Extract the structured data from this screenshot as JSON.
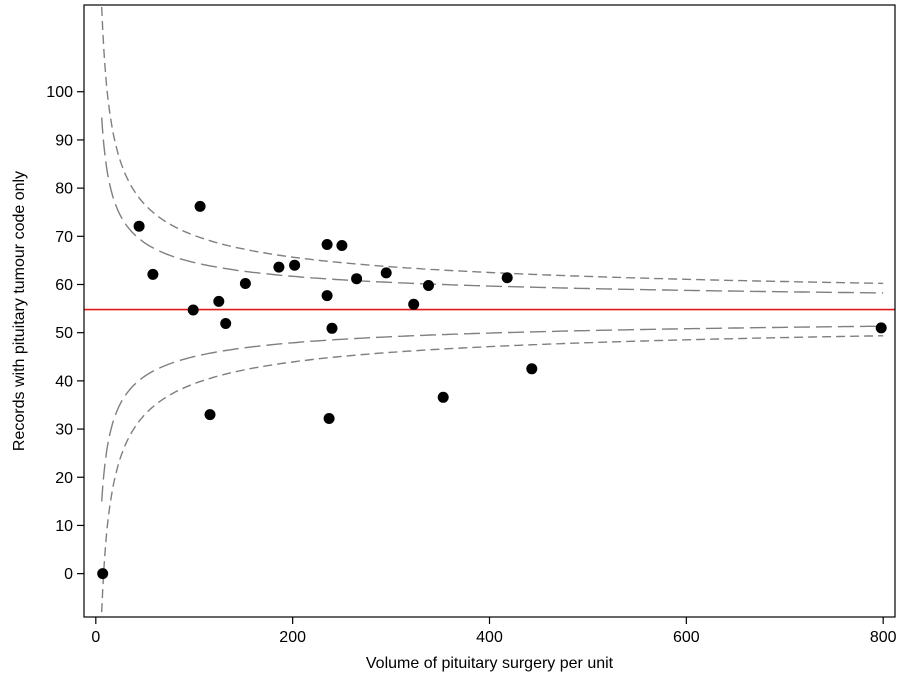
{
  "chart_data": {
    "type": "scatter",
    "title": "",
    "xlabel": "Volume of pituitary surgery per unit",
    "ylabel": "Records with pituitary tumour code only",
    "xlim": [
      -12,
      812
    ],
    "ylim": [
      -9,
      118
    ],
    "x_ticks": [
      0,
      200,
      400,
      600,
      800
    ],
    "y_ticks": [
      0,
      10,
      20,
      30,
      40,
      50,
      60,
      70,
      80,
      90,
      100
    ],
    "grid": false,
    "legend": "none",
    "points": [
      {
        "x": 7,
        "y": 0
      },
      {
        "x": 44,
        "y": 72.1
      },
      {
        "x": 58,
        "y": 62.1
      },
      {
        "x": 99,
        "y": 54.7
      },
      {
        "x": 106,
        "y": 76.2
      },
      {
        "x": 116,
        "y": 33
      },
      {
        "x": 125,
        "y": 56.5
      },
      {
        "x": 132,
        "y": 51.9
      },
      {
        "x": 152,
        "y": 60.2
      },
      {
        "x": 186,
        "y": 63.6
      },
      {
        "x": 202,
        "y": 64
      },
      {
        "x": 235,
        "y": 68.3
      },
      {
        "x": 235,
        "y": 57.7
      },
      {
        "x": 237,
        "y": 32.2
      },
      {
        "x": 240,
        "y": 50.9
      },
      {
        "x": 250,
        "y": 68.1
      },
      {
        "x": 265,
        "y": 61.2
      },
      {
        "x": 295,
        "y": 62.4
      },
      {
        "x": 323,
        "y": 55.9
      },
      {
        "x": 338,
        "y": 59.8
      },
      {
        "x": 353,
        "y": 36.6
      },
      {
        "x": 418,
        "y": 61.4
      },
      {
        "x": 443,
        "y": 42.5
      },
      {
        "x": 798,
        "y": 51
      }
    ],
    "reference_line": {
      "y": 54.8,
      "color": "#e31a1c"
    },
    "funnel_limits": {
      "center": 54.8,
      "z_inner": 1.96,
      "z_outer": 3.09,
      "color": "#7f7f7f"
    }
  }
}
